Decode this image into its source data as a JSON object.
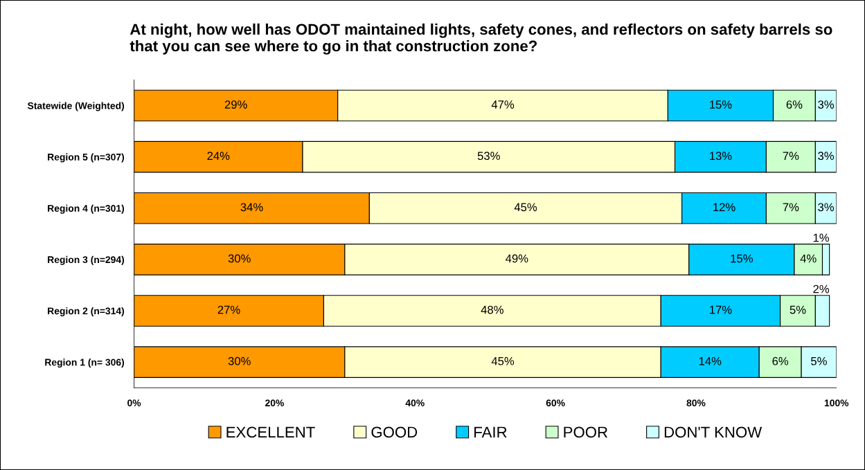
{
  "chart_data": {
    "type": "bar",
    "orientation": "horizontal",
    "stacked": true,
    "title": "At night, how well has ODOT maintained lights, safety cones, and reflectors on safety barrels so that you can see where to go in that construction zone?",
    "categories": [
      "Statewide (Weighted)",
      "Region 5 (n=307)",
      "Region 4 (n=301)",
      "Region 3 (n=294)",
      "Region 2 (n=314)",
      "Region 1 (n= 306)"
    ],
    "series": [
      {
        "name": "EXCELLENT",
        "color": "#ff9900",
        "values": [
          29,
          24,
          33.5,
          30,
          27,
          30
        ],
        "value_labels": [
          "29%",
          "24%",
          "34%",
          "30%",
          "27%",
          "30%"
        ]
      },
      {
        "name": "GOOD",
        "color": "#ffffcc",
        "values": [
          47,
          53,
          44.5,
          49,
          48,
          45
        ],
        "value_labels": [
          "47%",
          "53%",
          "45%",
          "49%",
          "48%",
          "45%"
        ]
      },
      {
        "name": "FAIR",
        "color": "#00ccff",
        "values": [
          15,
          13,
          12,
          15,
          17,
          14
        ],
        "value_labels": [
          "15%",
          "13%",
          "12%",
          "15%",
          "17%",
          "14%"
        ]
      },
      {
        "name": "POOR",
        "color": "#ccffcc",
        "values": [
          6,
          7,
          7,
          4,
          5,
          6
        ],
        "value_labels": [
          "6%",
          "7%",
          "7%",
          "4%",
          "5%",
          "6%"
        ]
      },
      {
        "name": "DON'T KNOW",
        "color": "#ccffff",
        "values": [
          3,
          3,
          3,
          1,
          2,
          5
        ],
        "value_labels": [
          "3%",
          "3%",
          "3%",
          "1%",
          "2%",
          "5%"
        ]
      }
    ],
    "xlim": [
      0,
      100
    ],
    "xticks": [
      {
        "value": 0,
        "label": "0%"
      },
      {
        "value": 20,
        "label": "20%"
      },
      {
        "value": 40,
        "label": "40%"
      },
      {
        "value": 60,
        "label": "60%"
      },
      {
        "value": 80,
        "label": "80%"
      },
      {
        "value": 100,
        "label": "100%"
      }
    ],
    "legend": "bottom",
    "grid": false
  }
}
